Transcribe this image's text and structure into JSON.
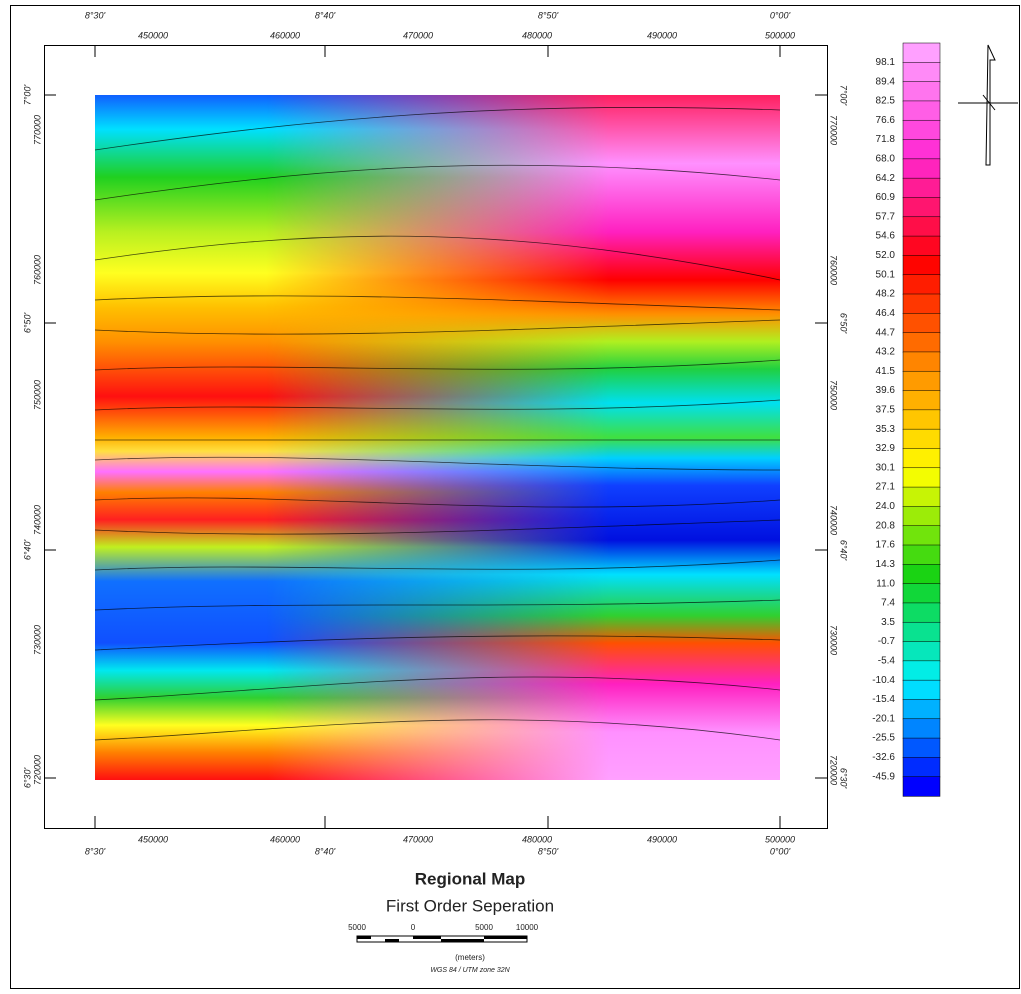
{
  "title": "Regional Map",
  "subtitle": "First Order Seperation",
  "axes": {
    "top_degrees": [
      "8°30'",
      "8°40'",
      "8°50'",
      "0°00'"
    ],
    "top_utm": [
      "450000",
      "460000",
      "470000",
      "480000",
      "490000",
      "500000"
    ],
    "bottom_degrees": [
      "8°30'",
      "8°40'",
      "8°50'",
      "0°00'"
    ],
    "bottom_utm": [
      "450000",
      "460000",
      "470000",
      "480000",
      "490000",
      "500000"
    ],
    "left_degrees": [
      "7°00'",
      "6°50'",
      "6°40'",
      "6°30'"
    ],
    "left_utm": [
      "770000",
      "760000",
      "750000",
      "740000",
      "730000",
      "720000"
    ],
    "right_degrees": [
      "7°00'",
      "6°50'",
      "6°40'",
      "6°30'"
    ],
    "right_utm": [
      "770000",
      "760000",
      "750000",
      "740000",
      "730000",
      "720000"
    ]
  },
  "legend": {
    "labels": [
      "98.1",
      "89.4",
      "82.5",
      "76.6",
      "71.8",
      "68.0",
      "64.2",
      "60.9",
      "57.7",
      "54.6",
      "52.0",
      "50.1",
      "48.2",
      "46.4",
      "44.7",
      "43.2",
      "41.5",
      "39.6",
      "37.5",
      "35.3",
      "32.9",
      "30.1",
      "27.1",
      "24.0",
      "20.8",
      "17.6",
      "14.3",
      "11.0",
      "7.4",
      "3.5",
      "-0.7",
      "-5.4",
      "-10.4",
      "-15.4",
      "-20.1",
      "-25.5",
      "-32.6",
      "-45.9"
    ]
  },
  "scale_bar": {
    "labels": [
      "5000",
      "0",
      "5000",
      "10000"
    ],
    "unit": "(meters)"
  },
  "projection": "WGS 84 / UTM zone 32N"
}
